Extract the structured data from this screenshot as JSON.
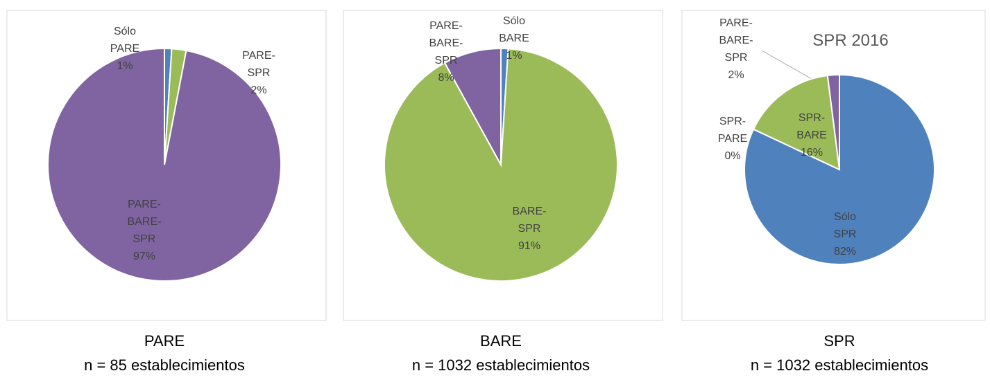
{
  "chart_data": [
    {
      "type": "pie",
      "caption": "PARE",
      "subcaption": "n = 85 establecimientos",
      "categories": [
        "Sólo PARE",
        "PARE-SPR",
        "PARE-BARE-SPR"
      ],
      "values": [
        1,
        2,
        97
      ],
      "value_labels": [
        "1%",
        "2%",
        "97%"
      ],
      "colors": [
        "#4f81bd",
        "#9bbb59",
        "#8064a2"
      ]
    },
    {
      "type": "pie",
      "caption": "BARE",
      "subcaption": "n = 1032 establecimientos",
      "categories": [
        "Sólo BARE",
        "BARE-SPR",
        "PARE-BARE-SPR"
      ],
      "values": [
        1,
        91,
        8
      ],
      "value_labels": [
        "1%",
        "91%",
        "8%"
      ],
      "colors": [
        "#4f81bd",
        "#9bbb59",
        "#8064a2"
      ]
    },
    {
      "type": "pie",
      "title": "SPR 2016",
      "caption": "SPR",
      "subcaption": "n = 1032 establecimientos",
      "categories": [
        "Sólo SPR",
        "SPR-PARE",
        "SPR-BARE",
        "PARE-BARE-SPR"
      ],
      "values": [
        82,
        0,
        16,
        2
      ],
      "value_labels": [
        "82%",
        "0%",
        "16%",
        "2%"
      ],
      "colors": [
        "#4f81bd",
        "#f79646",
        "#9bbb59",
        "#8064a2"
      ]
    }
  ]
}
